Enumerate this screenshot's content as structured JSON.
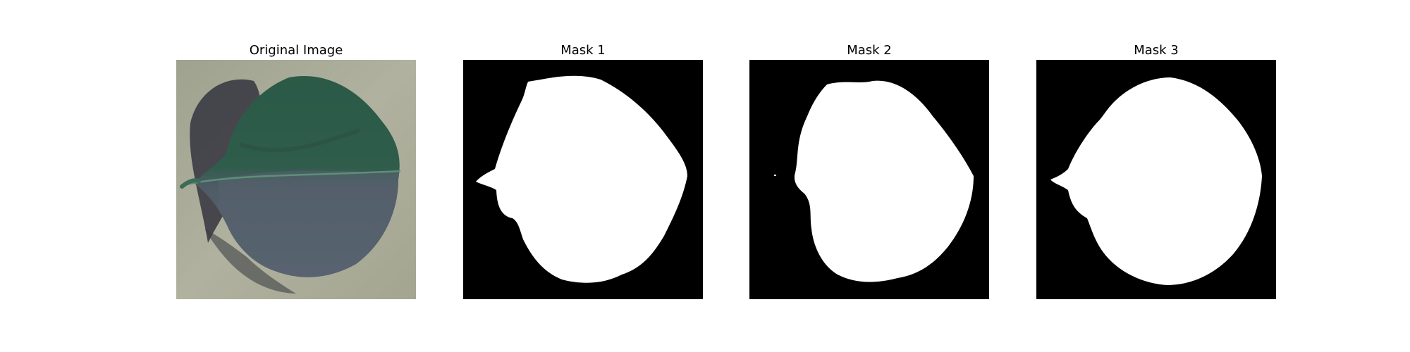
{
  "figure": {
    "panels": [
      {
        "title": "Original Image"
      },
      {
        "title": "Mask 1"
      },
      {
        "title": "Mask 2"
      },
      {
        "title": "Mask 3"
      }
    ]
  },
  "colors": {
    "background": "#ffffff",
    "mask_background": "#000000",
    "mask_foreground": "#ffffff",
    "photo_backdrop": "#a9ab97",
    "leaf_upper": "#2f5a48",
    "leaf_lower": "#56606e",
    "leaf_shadow": "#3d3d46"
  }
}
